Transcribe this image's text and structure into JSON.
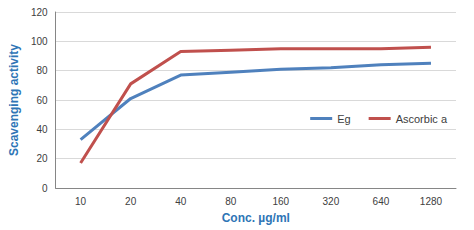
{
  "chart_data": {
    "type": "line",
    "x_label": "Conc. µg/ml",
    "y_label": "Scavenging activity",
    "categories": [
      "10",
      "20",
      "40",
      "80",
      "160",
      "320",
      "640",
      "1280"
    ],
    "series": [
      {
        "name": "Eg",
        "color": "#4f81bd",
        "values": [
          33,
          61,
          77,
          79,
          81,
          82,
          84,
          85
        ]
      },
      {
        "name": "Ascorbic a",
        "color": "#c0504d",
        "values": [
          17,
          71,
          93,
          94,
          95,
          95,
          95,
          96
        ]
      }
    ],
    "ylim": [
      0,
      120
    ],
    "yticks": [
      0,
      20,
      40,
      60,
      80,
      100,
      120
    ],
    "grid": true,
    "legend": "right",
    "marker": "none"
  }
}
